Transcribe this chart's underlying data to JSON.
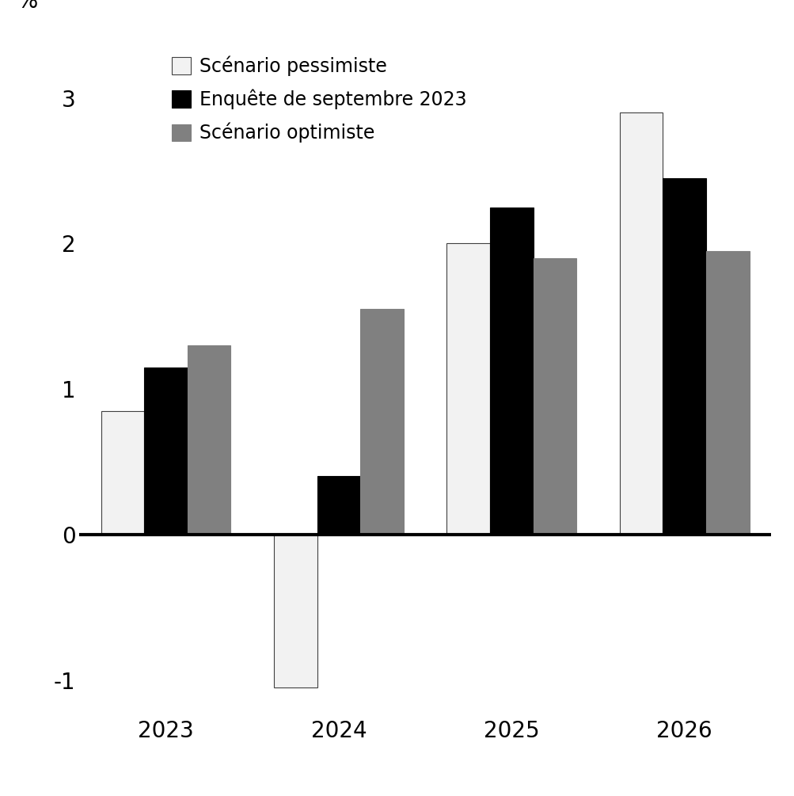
{
  "years": [
    "2023",
    "2024",
    "2025",
    "2026"
  ],
  "series": {
    "Scénario pessimiste": [
      0.85,
      -1.05,
      2.0,
      2.9
    ],
    "Enquête de septembre 2023": [
      1.15,
      0.4,
      2.25,
      2.45
    ],
    "Scénario optimiste": [
      1.3,
      1.55,
      1.9,
      1.95
    ]
  },
  "colors": {
    "Scénario pessimiste": "#f2f2f2",
    "Enquête de septembre 2023": "#000000",
    "Scénario optimiste": "#808080"
  },
  "edge_colors": {
    "Scénario pessimiste": "#404040",
    "Enquête de septembre 2023": "#000000",
    "Scénario optimiste": "#808080"
  },
  "ylim": [
    -1.25,
    3.4
  ],
  "yticks": [
    -1,
    0,
    1,
    2,
    3
  ],
  "ylabel": "%",
  "background_color": "#ffffff",
  "bar_width": 0.25,
  "legend_fontsize": 17,
  "tick_fontsize": 20,
  "ylabel_fontsize": 20
}
